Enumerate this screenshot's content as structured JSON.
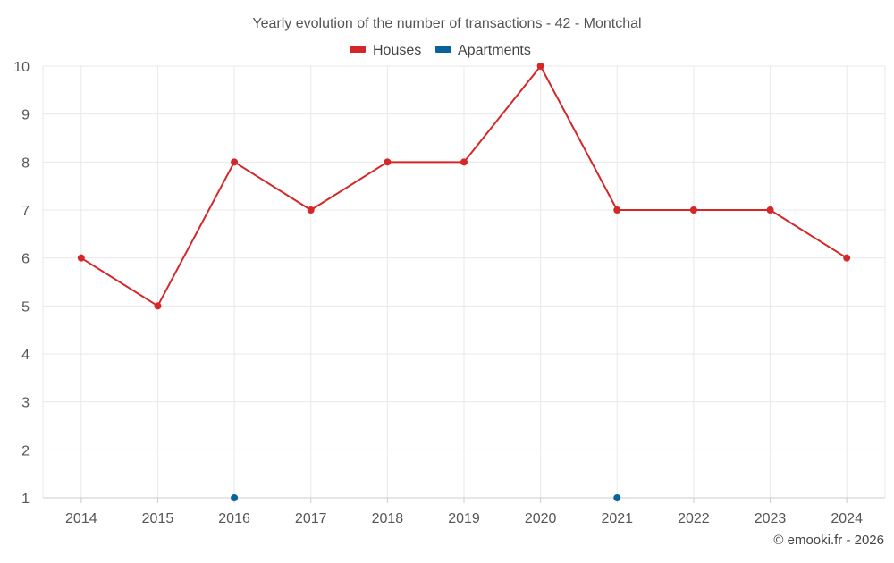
{
  "chart_data": {
    "type": "line",
    "title": "Yearly evolution of the number of transactions - 42 - Montchal",
    "categories": [
      "2014",
      "2015",
      "2016",
      "2017",
      "2018",
      "2019",
      "2020",
      "2021",
      "2022",
      "2023",
      "2024"
    ],
    "series": [
      {
        "name": "Houses",
        "color": "#d62728",
        "values": [
          6,
          5,
          8,
          7,
          8,
          8,
          10,
          7,
          7,
          7,
          6
        ]
      },
      {
        "name": "Apartments",
        "color": "#08639c",
        "values": [
          null,
          null,
          1,
          null,
          null,
          null,
          null,
          1,
          null,
          null,
          null
        ]
      }
    ],
    "ylim": [
      1,
      10
    ],
    "yticks": [
      1,
      2,
      3,
      4,
      5,
      6,
      7,
      8,
      9,
      10
    ],
    "xlabel": "",
    "ylabel": "",
    "grid": true,
    "legend": "top-center"
  },
  "credit": "© emooki.fr - 2026"
}
